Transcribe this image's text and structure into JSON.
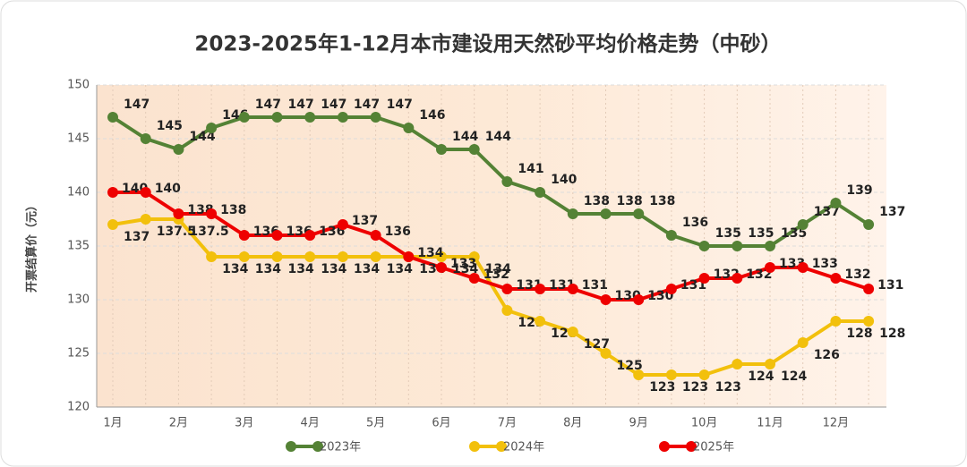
{
  "chart_data": {
    "type": "line",
    "title": "2023-2025年1-12月本市建设用天然砂平均价格走势（中砂）",
    "y_label": "开票结算价（元）",
    "categories": [
      "1月",
      null,
      "2月",
      null,
      "3月",
      null,
      "4月",
      null,
      "5月",
      null,
      "6月",
      null,
      "7月",
      null,
      "8月",
      null,
      "9月",
      null,
      "10月",
      null,
      "11月",
      null,
      "12月",
      null
    ],
    "series": [
      {
        "name": "2023年",
        "color": "#548235",
        "values": [
          147,
          145,
          144,
          146,
          147,
          147,
          147,
          147,
          147,
          146,
          144,
          144,
          141,
          140,
          138,
          138,
          138,
          136,
          135,
          135,
          135,
          137,
          139,
          137
        ]
      },
      {
        "name": "2024年",
        "color": "#f2c00c",
        "values": [
          137,
          137.5,
          137.5,
          134,
          134,
          134,
          134,
          134,
          134,
          134,
          134,
          134,
          129,
          128,
          127,
          125,
          123,
          123,
          123,
          124,
          124,
          126,
          128,
          128
        ]
      },
      {
        "name": "2025年",
        "color": "#ee0000",
        "values": [
          140,
          140,
          138,
          138,
          136,
          136,
          136,
          137,
          136,
          134,
          133,
          132,
          131,
          131,
          131,
          130,
          130,
          131,
          132,
          132,
          133,
          133,
          132,
          131
        ]
      }
    ],
    "ylim": [
      120,
      150
    ],
    "yticks": [
      120,
      125,
      130,
      135,
      140,
      145,
      150
    ],
    "grid": true
  }
}
